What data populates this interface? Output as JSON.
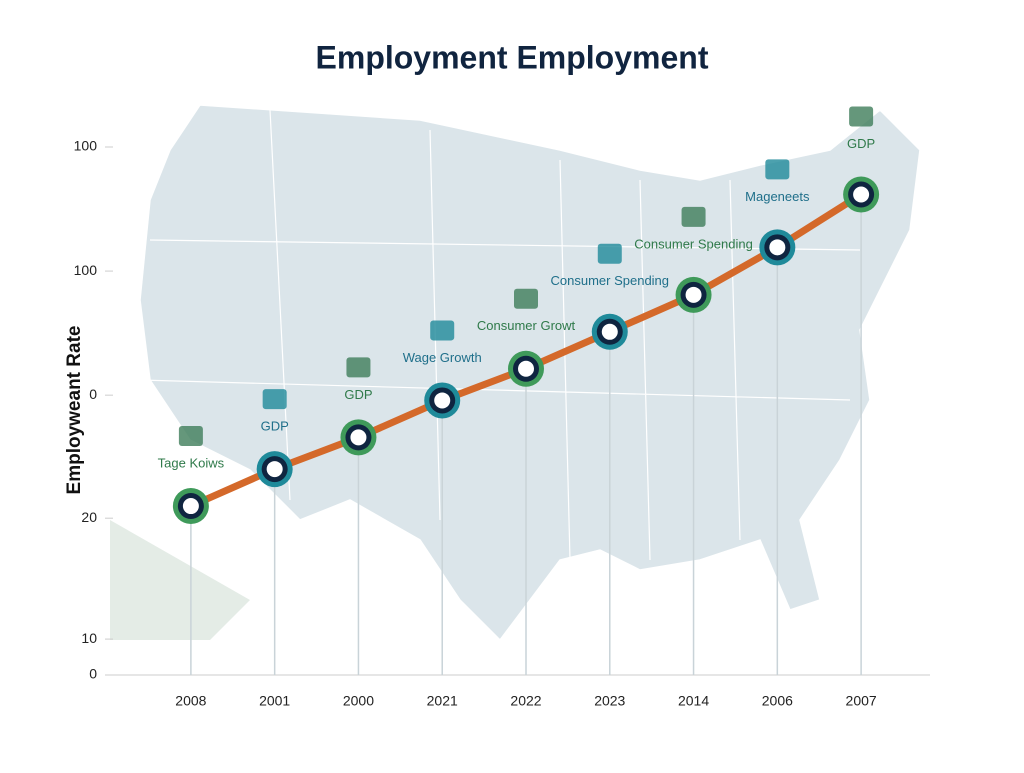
{
  "chart_data": {
    "type": "line",
    "title": "Employment Employment",
    "y_label": "Employweant Rate",
    "categories": [
      "2008",
      "2001",
      "2000",
      "2021",
      "2022",
      "2023",
      "2014",
      "2006",
      "2007"
    ],
    "values": [
      32,
      39,
      45,
      52,
      58,
      65,
      72,
      81,
      91
    ],
    "annotations": [
      "Tage Koiws",
      "GDP",
      "GDP",
      "Wage Growth",
      "Consumer Growt",
      "Consumer Spending",
      "Consumer Spending",
      "Mageneets",
      "GDP"
    ],
    "color": "#d4692a",
    "ylim": [
      0,
      100
    ],
    "yticks": [
      0,
      {
        "value": 6.8,
        "label": "10"
      },
      {
        "value": 29.7,
        "label": "20"
      },
      {
        "value": 53,
        "label": "0"
      },
      {
        "value": 76.5,
        "label": "100"
      },
      100
    ]
  }
}
